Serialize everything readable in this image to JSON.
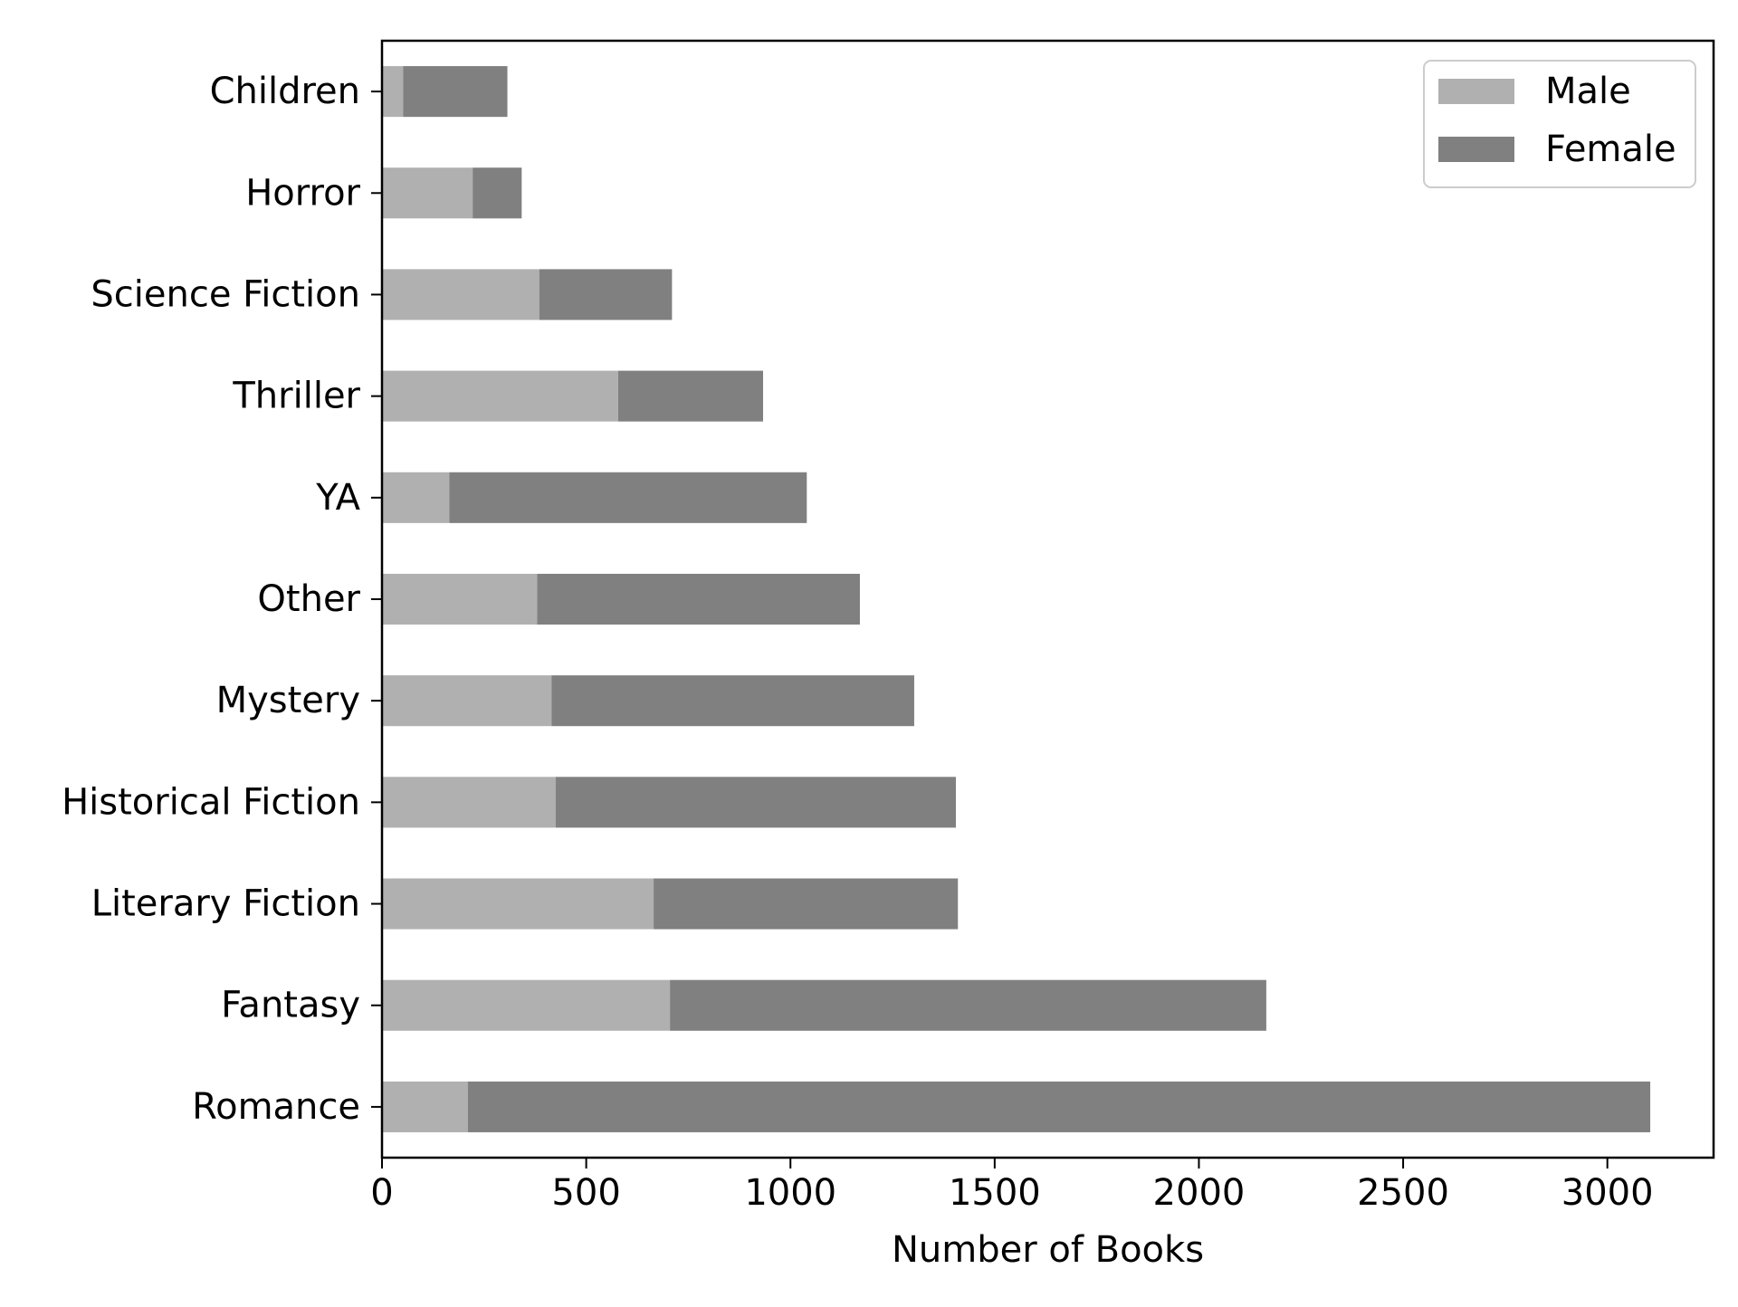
{
  "chart_data": {
    "type": "bar",
    "orientation": "horizontal",
    "stacked": true,
    "title": "",
    "xlabel": "Number of Books",
    "ylabel": "",
    "categories": [
      "Romance",
      "Fantasy",
      "Literary Fiction",
      "Historical Fiction",
      "Mystery",
      "Other",
      "YA",
      "Thriller",
      "Science Fiction",
      "Horror",
      "Children"
    ],
    "series": [
      {
        "name": "Male",
        "color": "#b0b0b0",
        "values": [
          210,
          705,
          665,
          425,
          415,
          380,
          165,
          578,
          385,
          222,
          52
        ]
      },
      {
        "name": "Female",
        "color": "#808080",
        "values": [
          2895,
          1460,
          745,
          980,
          888,
          790,
          875,
          355,
          325,
          120,
          255
        ]
      }
    ],
    "xlim": [
      0,
      3260
    ],
    "xticks": [
      0,
      500,
      1000,
      1500,
      2000,
      2500,
      3000
    ],
    "grid": false,
    "legend_position": "top-right"
  }
}
